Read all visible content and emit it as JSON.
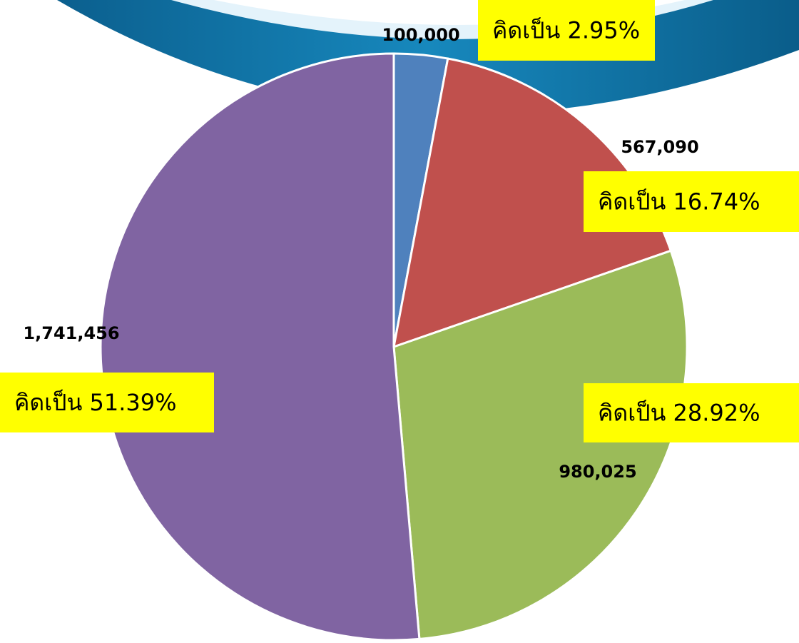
{
  "chart_data": {
    "type": "pie",
    "values": [
      100000,
      567090,
      980025,
      1741456
    ],
    "value_labels": [
      "100,000",
      "567,090",
      "980,025",
      "1,741,456"
    ],
    "annotations": [
      "คิดเป็น 2.95%",
      "คิดเป็น 16.74%",
      "คิดเป็น 28.92%",
      "คิดเป็น 51.39%"
    ],
    "colors": [
      "#4f81bd",
      "#c0504d",
      "#9bbb59",
      "#8064a2"
    ]
  }
}
